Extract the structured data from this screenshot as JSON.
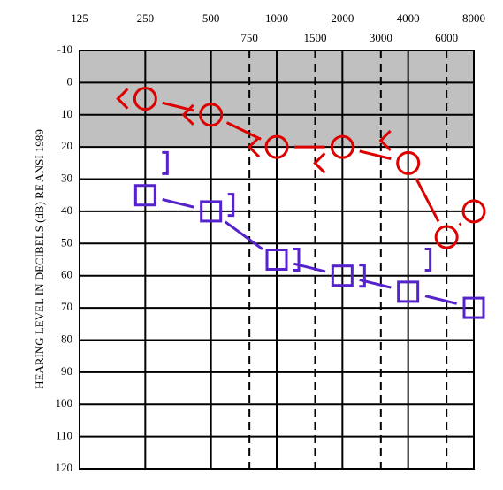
{
  "chart_data": {
    "type": "audiogram",
    "ylabel": "HEARING LEVEL IN DECIBELS (dB) RE ANSI 1989",
    "xscale": "log",
    "xlim": [
      125,
      8000
    ],
    "xticks": [
      125,
      250,
      500,
      1000,
      2000,
      4000,
      8000
    ],
    "xticks_dashed": [
      750,
      1500,
      3000,
      6000
    ],
    "ylim": [
      -10,
      120
    ],
    "y_inverted": true,
    "yticks": [
      -10,
      0,
      10,
      20,
      30,
      40,
      50,
      60,
      70,
      80,
      90,
      100,
      110,
      120
    ],
    "grid": true,
    "shade": {
      "from": -10,
      "to": 20,
      "color": "#c0c0c0"
    },
    "series": [
      {
        "color": "#dd0000",
        "marker": "circle",
        "line": true,
        "x": [
          250,
          500,
          1000,
          2000,
          4000,
          6000,
          8000
        ],
        "values": [
          5,
          10,
          20,
          20,
          25,
          48,
          40
        ]
      },
      {
        "color": "#dd0000",
        "marker": "left-bracket-angle",
        "line": false,
        "x": [
          250,
          500,
          1000,
          2000,
          4000
        ],
        "values": [
          5,
          10,
          20,
          25,
          18
        ]
      },
      {
        "color": "#5522cc",
        "marker": "square",
        "line": true,
        "x": [
          250,
          500,
          1000,
          2000,
          4000,
          8000
        ],
        "values": [
          35,
          40,
          55,
          60,
          65,
          70
        ]
      },
      {
        "color": "#5522cc",
        "marker": "right-bracket",
        "line": false,
        "x": [
          250,
          500,
          1000,
          2000,
          4000
        ],
        "values": [
          25,
          38,
          55,
          60,
          55
        ]
      }
    ]
  }
}
